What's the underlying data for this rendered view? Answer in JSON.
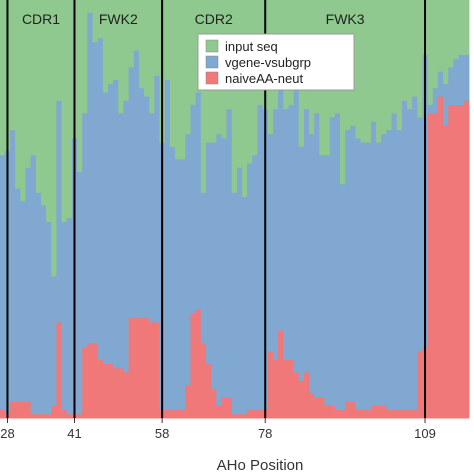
{
  "chart_data": {
    "type": "bar",
    "stacked": true,
    "normalized": true,
    "xlabel": "AHo Position",
    "ylim": [
      0,
      1
    ],
    "x_range": [
      24,
      118
    ],
    "x_ticks": [
      28,
      41,
      58,
      78,
      109
    ],
    "region_boundaries": [
      28,
      41,
      58,
      78,
      109
    ],
    "regions": [
      {
        "label": "CDR1",
        "start": 28,
        "end": 41
      },
      {
        "label": "FWK2",
        "start": 41,
        "end": 58
      },
      {
        "label": "CDR2",
        "start": 58,
        "end": 78
      },
      {
        "label": "FWK3",
        "start": 78,
        "end": 109
      }
    ],
    "legend": {
      "position": "top-center"
    },
    "series": [
      {
        "name": "input seq",
        "color": "#8fc98f"
      },
      {
        "name": "vgene-vsubgrp",
        "color": "#80a8d0"
      },
      {
        "name": "naiveAA-neut",
        "color": "#f07878"
      }
    ],
    "x": [
      24,
      25,
      26,
      27,
      28,
      29,
      30,
      31,
      32,
      33,
      34,
      35,
      36,
      37,
      38,
      39,
      40,
      41,
      42,
      43,
      44,
      45,
      46,
      47,
      48,
      49,
      50,
      51,
      52,
      53,
      54,
      55,
      56,
      57,
      58,
      59,
      60,
      61,
      62,
      63,
      64,
      65,
      66,
      67,
      68,
      69,
      70,
      71,
      72,
      73,
      74,
      75,
      76,
      77,
      78,
      79,
      80,
      81,
      82,
      83,
      84,
      85,
      86,
      87,
      88,
      89,
      90,
      91,
      92,
      93,
      94,
      95,
      96,
      97,
      98,
      99,
      100,
      101,
      102,
      103,
      104,
      105,
      106,
      107,
      108,
      109,
      110,
      111,
      112,
      113,
      114,
      115,
      116,
      117
    ],
    "red": [
      0.07,
      0.13,
      0.05,
      0.02,
      0.01,
      0.04,
      0.04,
      0.04,
      0.04,
      0.01,
      0.01,
      0.01,
      0.01,
      0.03,
      0.23,
      0.02,
      0.01,
      0.01,
      0.01,
      0.17,
      0.18,
      0.18,
      0.14,
      0.13,
      0.13,
      0.12,
      0.12,
      0.11,
      0.24,
      0.24,
      0.24,
      0.24,
      0.23,
      0.23,
      0.02,
      0.02,
      0.02,
      0.02,
      0.02,
      0.08,
      0.25,
      0.26,
      0.18,
      0.13,
      0.07,
      0.03,
      0.05,
      0.05,
      0.01,
      0.01,
      0.01,
      0.02,
      0.02,
      0.02,
      0.02,
      0.16,
      0.14,
      0.21,
      0.14,
      0.14,
      0.11,
      0.09,
      0.11,
      0.06,
      0.05,
      0.05,
      0.03,
      0.03,
      0.02,
      0.02,
      0.04,
      0.04,
      0.02,
      0.02,
      0.02,
      0.03,
      0.03,
      0.03,
      0.02,
      0.02,
      0.02,
      0.02,
      0.02,
      0.02,
      0.16,
      0.17,
      0.73,
      0.73,
      0.77,
      0.7,
      0.75,
      0.75,
      0.75,
      0.76
    ],
    "blue": [
      0.57,
      0.53,
      0.62,
      0.61,
      0.63,
      0.65,
      0.51,
      0.48,
      0.56,
      0.62,
      0.53,
      0.5,
      0.46,
      0.31,
      0.53,
      0.45,
      0.47,
      0.66,
      0.58,
      0.56,
      0.79,
      0.72,
      0.77,
      0.65,
      0.67,
      0.69,
      0.61,
      0.65,
      0.6,
      0.64,
      0.55,
      0.53,
      0.5,
      0.59,
      0.64,
      0.79,
      0.63,
      0.6,
      0.6,
      0.6,
      0.5,
      0.52,
      0.36,
      0.53,
      0.59,
      0.65,
      0.62,
      0.69,
      0.53,
      0.59,
      0.52,
      0.59,
      0.61,
      0.73,
      0.72,
      0.52,
      0.6,
      0.59,
      0.6,
      0.61,
      0.7,
      0.56,
      0.63,
      0.62,
      0.68,
      0.58,
      0.6,
      0.69,
      0.71,
      0.54,
      0.65,
      0.66,
      0.65,
      0.64,
      0.64,
      0.68,
      0.63,
      0.65,
      0.67,
      0.71,
      0.67,
      0.74,
      0.72,
      0.75,
      0.56,
      0.7,
      0.02,
      0.06,
      0.06,
      0.1,
      0.09,
      0.11,
      0.12,
      0.11
    ],
    "green": [
      0.36,
      0.34,
      0.33,
      0.37,
      0.36,
      0.31,
      0.45,
      0.48,
      0.4,
      0.37,
      0.46,
      0.49,
      0.53,
      0.66,
      0.24,
      0.53,
      0.52,
      0.33,
      0.41,
      0.27,
      0.03,
      0.1,
      0.09,
      0.22,
      0.2,
      0.19,
      0.27,
      0.24,
      0.16,
      0.12,
      0.21,
      0.23,
      0.27,
      0.18,
      0.34,
      0.19,
      0.35,
      0.38,
      0.38,
      0.32,
      0.25,
      0.22,
      0.46,
      0.34,
      0.34,
      0.32,
      0.33,
      0.26,
      0.46,
      0.4,
      0.47,
      0.39,
      0.37,
      0.25,
      0.26,
      0.32,
      0.26,
      0.2,
      0.26,
      0.25,
      0.19,
      0.35,
      0.26,
      0.32,
      0.27,
      0.37,
      0.37,
      0.28,
      0.27,
      0.44,
      0.31,
      0.3,
      0.33,
      0.34,
      0.34,
      0.29,
      0.34,
      0.32,
      0.31,
      0.27,
      0.31,
      0.24,
      0.26,
      0.23,
      0.28,
      0.13,
      0.25,
      0.21,
      0.17,
      0.2,
      0.16,
      0.14,
      0.13,
      0.13
    ]
  }
}
